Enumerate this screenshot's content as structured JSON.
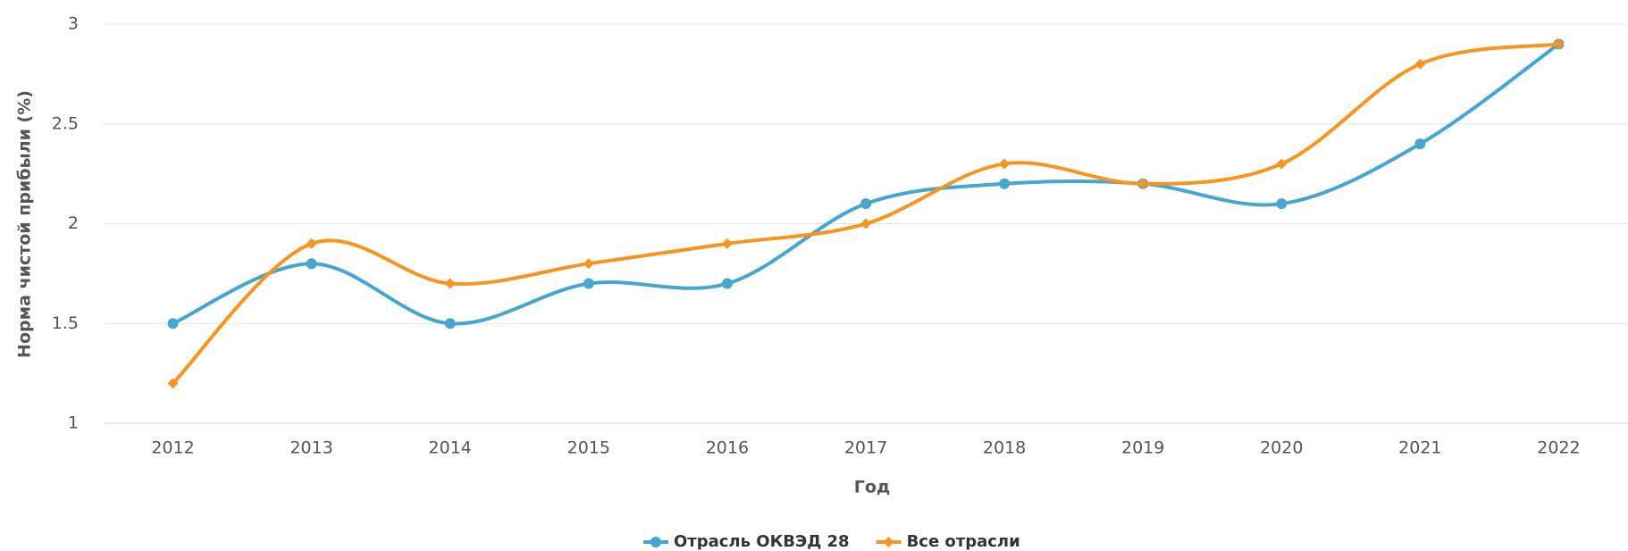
{
  "chart_data": {
    "type": "line",
    "xlabel": "Год",
    "ylabel": "Норма чистой прибыли (%)",
    "categories": [
      "2012",
      "2013",
      "2014",
      "2015",
      "2016",
      "2017",
      "2018",
      "2019",
      "2020",
      "2021",
      "2022"
    ],
    "series": [
      {
        "name": "Отрасль ОКВЭД 28",
        "color": "#45a6d2",
        "marker": "circle",
        "values": [
          1.5,
          1.8,
          1.5,
          1.7,
          1.7,
          2.1,
          2.2,
          2.2,
          2.1,
          2.4,
          2.9
        ]
      },
      {
        "name": "Все отрасли",
        "color": "#f7951e",
        "marker": "diamond",
        "values": [
          1.2,
          1.9,
          1.7,
          1.8,
          1.9,
          2.0,
          2.3,
          2.2,
          2.3,
          2.8,
          2.9
        ]
      }
    ],
    "ylim": [
      1,
      3
    ],
    "yticks": [
      1,
      1.5,
      2,
      2.5,
      3
    ],
    "grid": true,
    "legend": "bottom"
  }
}
